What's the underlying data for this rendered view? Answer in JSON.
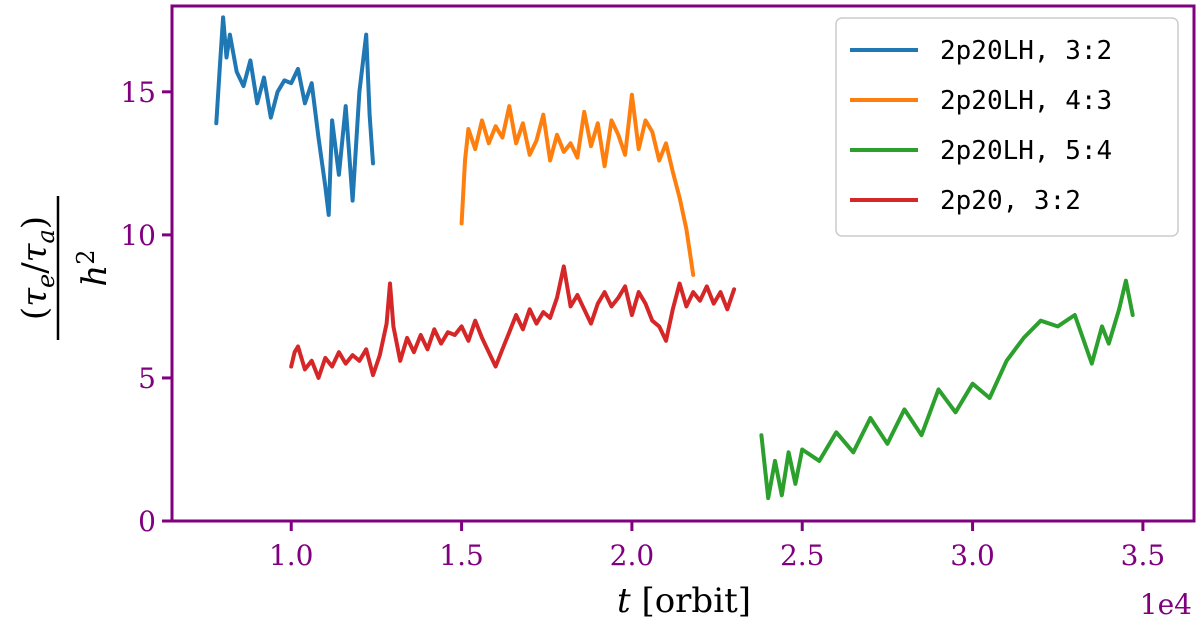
{
  "chart_data": {
    "type": "line",
    "xlabel_italic": "t",
    "xlabel_rest": " [orbit]",
    "ylabel_numerator": "(τe/τa)",
    "ylabel_denominator": "h2",
    "x_offset_label": "1e4",
    "xlim": [
      0.65,
      3.65
    ],
    "ylim": [
      0,
      18
    ],
    "x_ticks": [
      1.0,
      1.5,
      2.0,
      2.5,
      3.0,
      3.5
    ],
    "x_tick_labels": [
      "1.0",
      "1.5",
      "2.0",
      "2.5",
      "3.0",
      "3.5"
    ],
    "y_ticks": [
      0,
      5,
      10,
      15
    ],
    "y_tick_labels": [
      "0",
      "5",
      "10",
      "15"
    ],
    "axis_color": "#800080",
    "legend_position": "top-right",
    "series": [
      {
        "name": "2p20LH, 3:2",
        "color": "#1f77b4",
        "x": [
          0.78,
          0.79,
          0.8,
          0.81,
          0.82,
          0.84,
          0.86,
          0.88,
          0.9,
          0.92,
          0.94,
          0.96,
          0.98,
          1.0,
          1.02,
          1.04,
          1.06,
          1.08,
          1.1,
          1.11,
          1.12,
          1.14,
          1.16,
          1.18,
          1.2,
          1.22,
          1.23,
          1.24
        ],
        "y": [
          13.9,
          15.8,
          17.6,
          16.2,
          17.0,
          15.7,
          15.2,
          16.1,
          14.6,
          15.5,
          14.1,
          15.0,
          15.4,
          15.3,
          15.8,
          14.6,
          15.3,
          13.4,
          11.7,
          10.7,
          14.0,
          12.1,
          14.5,
          11.2,
          15.0,
          17.0,
          14.2,
          12.5
        ]
      },
      {
        "name": "2p20LH, 4:3",
        "color": "#ff7f0e",
        "x": [
          1.5,
          1.51,
          1.52,
          1.54,
          1.56,
          1.58,
          1.6,
          1.62,
          1.64,
          1.66,
          1.68,
          1.7,
          1.72,
          1.74,
          1.76,
          1.78,
          1.8,
          1.82,
          1.84,
          1.86,
          1.88,
          1.9,
          1.92,
          1.94,
          1.96,
          1.98,
          2.0,
          2.02,
          2.04,
          2.06,
          2.08,
          2.1,
          2.12,
          2.14,
          2.16,
          2.18
        ],
        "y": [
          10.4,
          12.6,
          13.7,
          13.0,
          14.0,
          13.2,
          13.8,
          13.4,
          14.5,
          13.2,
          13.9,
          12.8,
          13.3,
          14.2,
          12.6,
          13.5,
          12.9,
          13.2,
          12.7,
          14.3,
          13.1,
          13.9,
          12.4,
          14.0,
          13.5,
          12.8,
          14.9,
          13.0,
          14.0,
          13.6,
          12.6,
          13.2,
          12.2,
          11.3,
          10.2,
          8.6
        ]
      },
      {
        "name": "2p20LH, 5:4",
        "color": "#2ca02c",
        "x": [
          2.38,
          2.4,
          2.42,
          2.44,
          2.46,
          2.48,
          2.5,
          2.55,
          2.6,
          2.65,
          2.7,
          2.75,
          2.8,
          2.85,
          2.9,
          2.95,
          3.0,
          3.05,
          3.1,
          3.15,
          3.2,
          3.25,
          3.3,
          3.35,
          3.38,
          3.4,
          3.43,
          3.45,
          3.47
        ],
        "y": [
          3.0,
          0.8,
          2.1,
          0.9,
          2.4,
          1.3,
          2.5,
          2.1,
          3.1,
          2.4,
          3.6,
          2.7,
          3.9,
          3.0,
          4.6,
          3.8,
          4.8,
          4.3,
          5.6,
          6.4,
          7.0,
          6.8,
          7.2,
          5.5,
          6.8,
          6.2,
          7.4,
          8.4,
          7.2
        ]
      },
      {
        "name": "2p20, 3:2",
        "color": "#d62728",
        "x": [
          1.0,
          1.01,
          1.02,
          1.04,
          1.06,
          1.08,
          1.1,
          1.12,
          1.14,
          1.16,
          1.18,
          1.2,
          1.22,
          1.24,
          1.26,
          1.28,
          1.29,
          1.3,
          1.32,
          1.34,
          1.36,
          1.38,
          1.4,
          1.42,
          1.44,
          1.46,
          1.48,
          1.5,
          1.52,
          1.54,
          1.56,
          1.58,
          1.6,
          1.62,
          1.64,
          1.66,
          1.68,
          1.7,
          1.72,
          1.74,
          1.76,
          1.78,
          1.8,
          1.82,
          1.84,
          1.86,
          1.88,
          1.9,
          1.92,
          1.94,
          1.96,
          1.98,
          2.0,
          2.02,
          2.04,
          2.06,
          2.08,
          2.1,
          2.12,
          2.14,
          2.16,
          2.18,
          2.2,
          2.22,
          2.24,
          2.26,
          2.28,
          2.3
        ],
        "y": [
          5.4,
          5.9,
          6.1,
          5.3,
          5.6,
          5.0,
          5.7,
          5.4,
          5.9,
          5.5,
          5.8,
          5.6,
          6.0,
          5.1,
          5.8,
          6.9,
          8.3,
          6.8,
          5.6,
          6.4,
          5.9,
          6.5,
          6.0,
          6.7,
          6.2,
          6.6,
          6.5,
          6.8,
          6.3,
          7.0,
          6.4,
          5.9,
          5.4,
          6.0,
          6.6,
          7.2,
          6.7,
          7.4,
          6.9,
          7.3,
          7.1,
          7.8,
          8.9,
          7.5,
          7.9,
          7.4,
          6.9,
          7.6,
          8.0,
          7.5,
          7.8,
          8.2,
          7.2,
          8.0,
          7.6,
          7.0,
          6.8,
          6.3,
          7.4,
          8.3,
          7.5,
          8.0,
          7.7,
          8.2,
          7.6,
          8.0,
          7.4,
          8.1
        ]
      }
    ]
  }
}
